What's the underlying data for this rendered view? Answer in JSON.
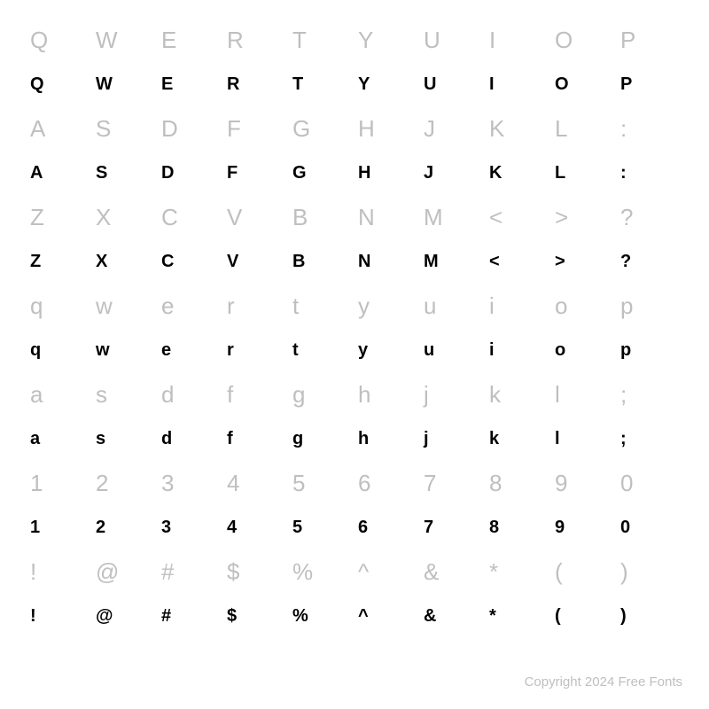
{
  "rows": [
    {
      "type": "ref",
      "chars": [
        "Q",
        "W",
        "E",
        "R",
        "T",
        "Y",
        "U",
        "I",
        "O",
        "P"
      ]
    },
    {
      "type": "rendered",
      "chars": [
        "Q",
        "W",
        "E",
        "R",
        "T",
        "Y",
        "U",
        "I",
        "O",
        "P"
      ]
    },
    {
      "type": "ref",
      "chars": [
        "A",
        "S",
        "D",
        "F",
        "G",
        "H",
        "J",
        "K",
        "L",
        ":"
      ]
    },
    {
      "type": "rendered",
      "chars": [
        "A",
        "S",
        "D",
        "F",
        "G",
        "H",
        "J",
        "K",
        "L",
        ":"
      ]
    },
    {
      "type": "ref",
      "chars": [
        "Z",
        "X",
        "C",
        "V",
        "B",
        "N",
        "M",
        "<",
        ">",
        "?"
      ]
    },
    {
      "type": "rendered",
      "chars": [
        "Z",
        "X",
        "C",
        "V",
        "B",
        "N",
        "M",
        "<",
        ">",
        "?"
      ]
    },
    {
      "type": "ref",
      "chars": [
        "q",
        "w",
        "e",
        "r",
        "t",
        "y",
        "u",
        "i",
        "o",
        "p"
      ]
    },
    {
      "type": "rendered",
      "chars": [
        "q",
        "w",
        "e",
        "r",
        "t",
        "y",
        "u",
        "i",
        "o",
        "p"
      ]
    },
    {
      "type": "ref",
      "chars": [
        "a",
        "s",
        "d",
        "f",
        "g",
        "h",
        "j",
        "k",
        "l",
        ";"
      ]
    },
    {
      "type": "rendered",
      "chars": [
        "a",
        "s",
        "d",
        "f",
        "g",
        "h",
        "j",
        "k",
        "l",
        ";"
      ]
    },
    {
      "type": "ref",
      "chars": [
        "1",
        "2",
        "3",
        "4",
        "5",
        "6",
        "7",
        "8",
        "9",
        "0"
      ]
    },
    {
      "type": "rendered",
      "chars": [
        "1",
        "2",
        "3",
        "4",
        "5",
        "6",
        "7",
        "8",
        "9",
        "0"
      ]
    },
    {
      "type": "ref",
      "chars": [
        "!",
        "@",
        "#",
        "$",
        "%",
        "^",
        "&",
        "*",
        "(",
        ")"
      ]
    },
    {
      "type": "rendered",
      "chars": [
        "!",
        "@",
        "#",
        "$",
        "%",
        "^",
        "&",
        "*",
        "(",
        ")"
      ]
    }
  ],
  "footer": "Copyright 2024 Free Fonts",
  "colors": {
    "ref": "#bfbfbf",
    "rendered": "#000000",
    "background": "#ffffff"
  },
  "font_sizes": {
    "ref": 26,
    "rendered": 20,
    "footer": 15
  }
}
